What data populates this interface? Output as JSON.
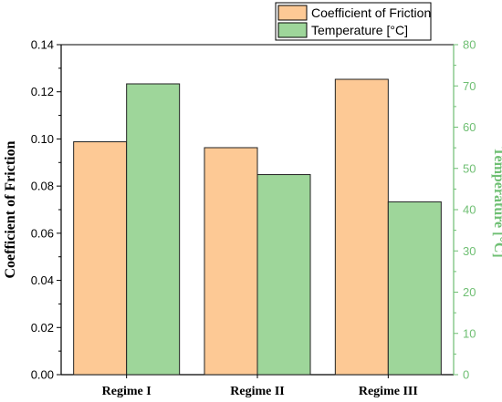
{
  "chart_data": {
    "type": "bar",
    "categories": [
      "Regime I",
      "Regime II",
      "Regime III"
    ],
    "series": [
      {
        "name": "Coefficient of Friction",
        "axis": "left",
        "color": "#fdc995",
        "values": [
          0.0988,
          0.0963,
          0.1253
        ]
      },
      {
        "name": "Temperature [°C]",
        "axis": "right",
        "color": "#9ed69a",
        "values": [
          70.5,
          48.5,
          41.9
        ]
      }
    ],
    "ylabel_left": "Coefficient of Friction",
    "ylabel_right": "Temperature [°C]",
    "ylim_left": [
      0,
      0.14
    ],
    "ylim_right": [
      0,
      80
    ],
    "yticks_left": [
      "0.00",
      "0.02",
      "0.04",
      "0.06",
      "0.08",
      "0.10",
      "0.12",
      "0.14"
    ],
    "yticks_right": [
      "0",
      "10",
      "20",
      "30",
      "40",
      "50",
      "60",
      "70",
      "80"
    ],
    "right_axis_color": "#6fbf73",
    "grid": false,
    "legend_position": "top-right"
  }
}
